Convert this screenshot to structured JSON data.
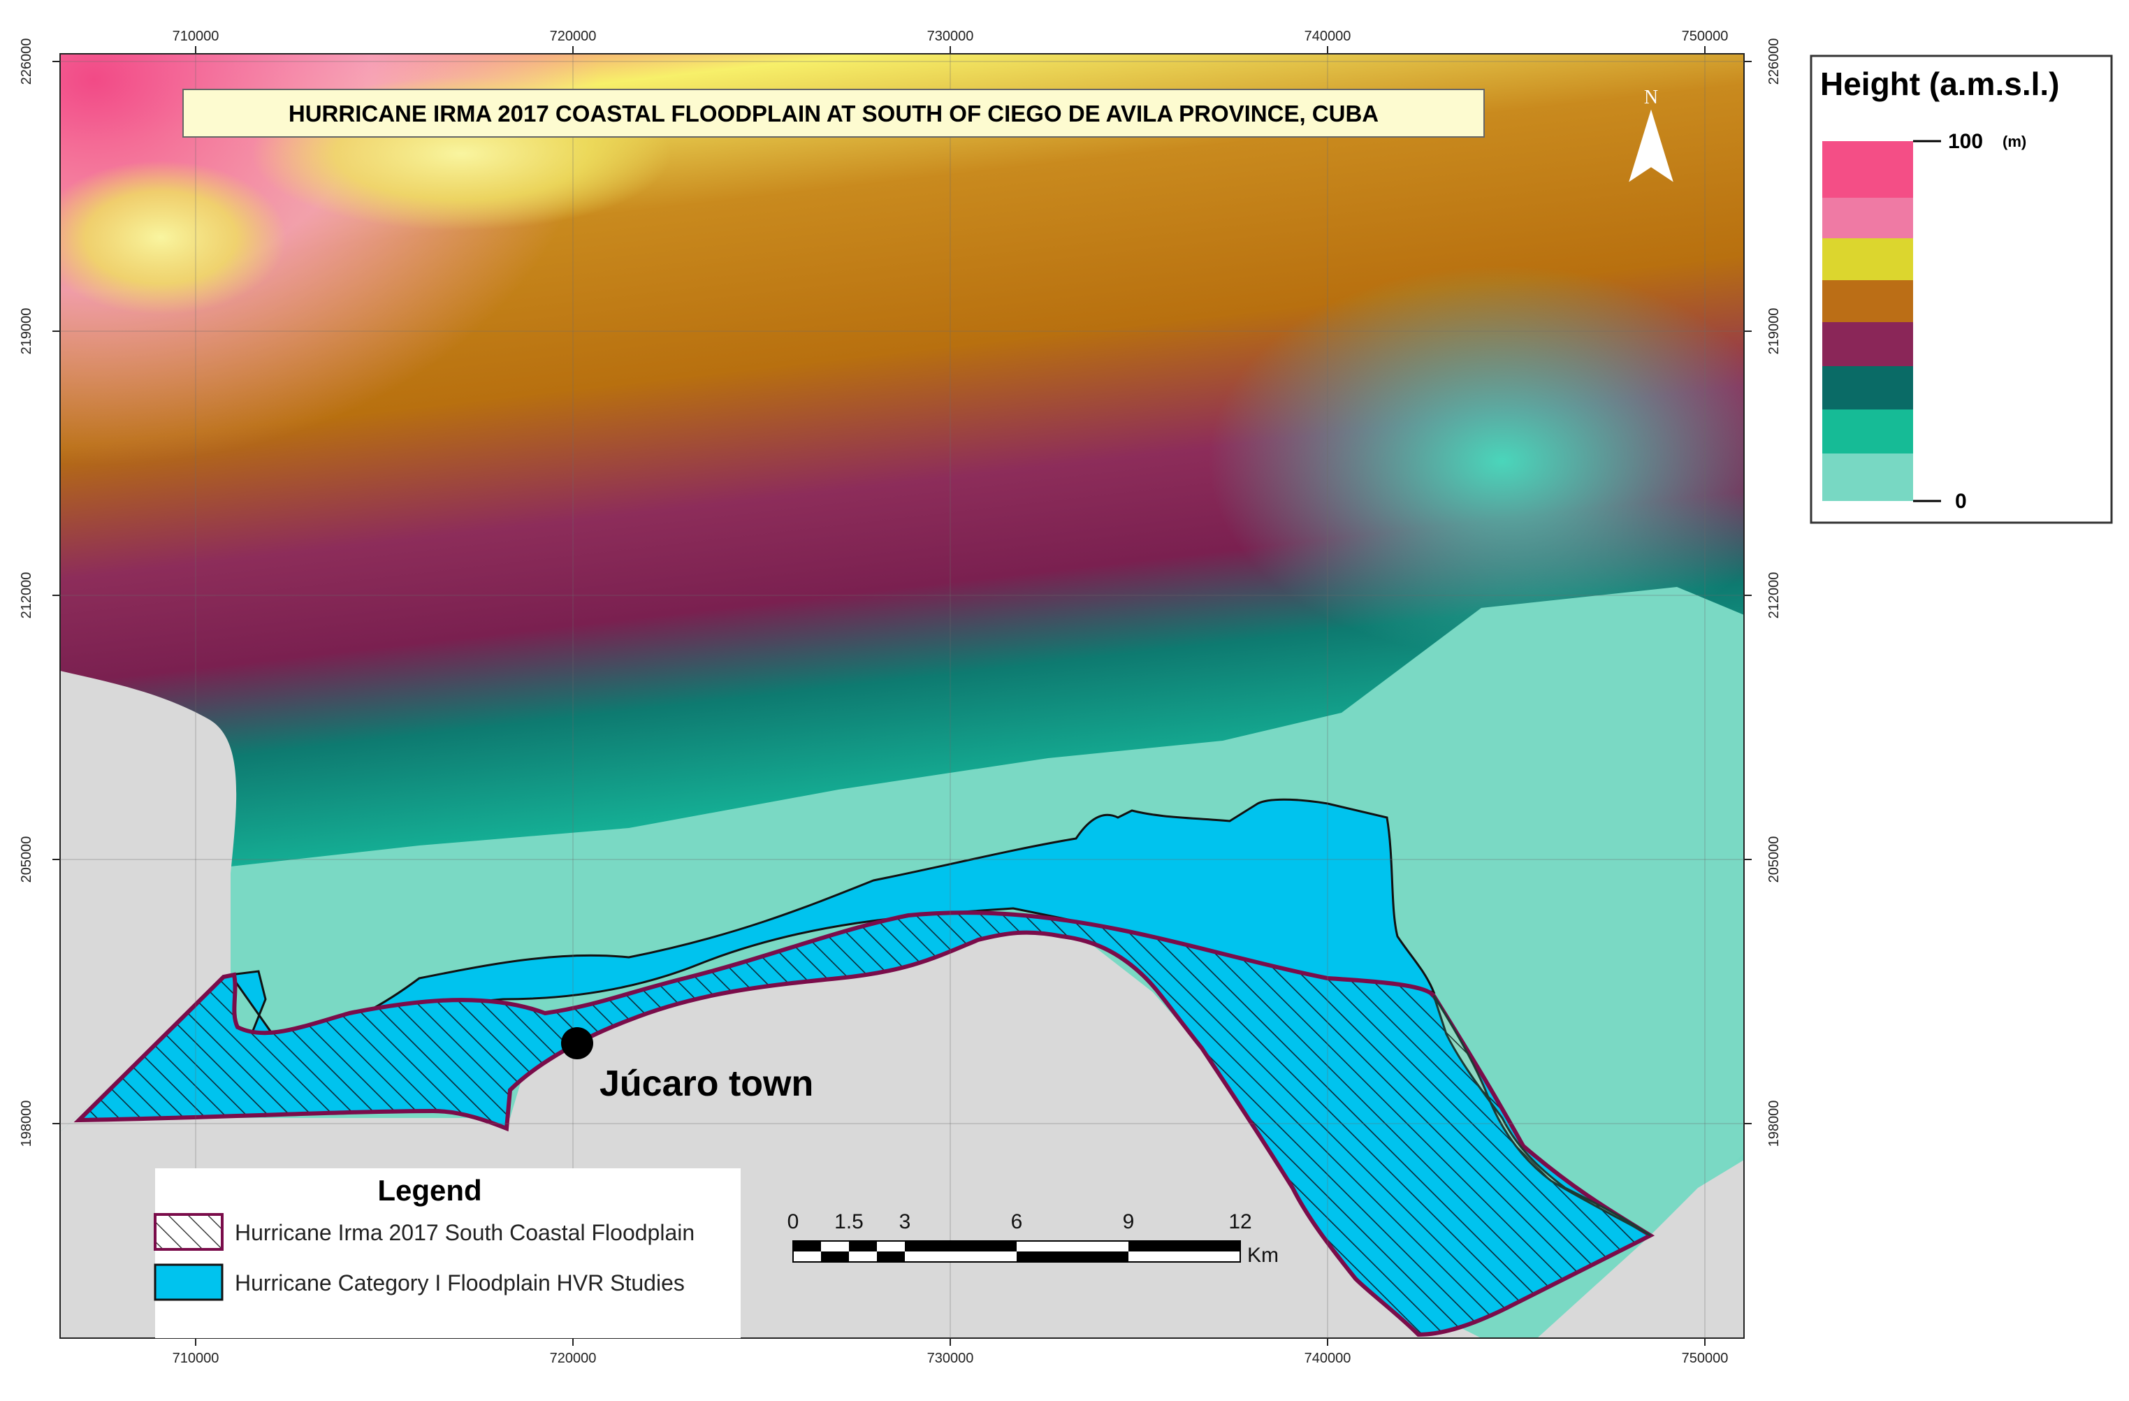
{
  "map": {
    "title": "HURRICANE IRMA 2017 COASTAL FLOODPLAIN AT SOUTH OF CIEGO DE AVILA PROVINCE, CUBA",
    "north_label": "N",
    "place_label": "Júcaro town",
    "x_ticks": [
      "710000",
      "720000",
      "730000",
      "740000",
      "750000"
    ],
    "y_ticks": [
      "226000",
      "219000",
      "212000",
      "205000",
      "198000"
    ]
  },
  "legend": {
    "title": "Legend",
    "items": [
      {
        "label": "Hurricane Irma 2017 South Coastal Floodplain",
        "fill": "hatched",
        "outline": "#7a0c4a"
      },
      {
        "label": "Hurricane Category I Floodplain HVR Studies",
        "fill": "#00c3ee",
        "outline": "#111111"
      }
    ]
  },
  "scalebar": {
    "ticks": [
      "0",
      "1.5",
      "3",
      "6",
      "9",
      "12"
    ],
    "unit": "Km"
  },
  "height_legend": {
    "title": "Height   (a.m.s.l.)",
    "max_label": "100",
    "unit": "(m)",
    "min_label": "0",
    "colors": [
      "#f44e86",
      "#ef7aa4",
      "#dcd62e",
      "#bb6e16",
      "#8a2658",
      "#0a6b66",
      "#16bb96",
      "#78d8c3"
    ]
  },
  "colors": {
    "land_gray": "#d9d9d9",
    "hvr_floodplain": "#00c3ee",
    "irma_outline": "#7a0c4a",
    "plain_lowland": "#7ad9c4"
  }
}
